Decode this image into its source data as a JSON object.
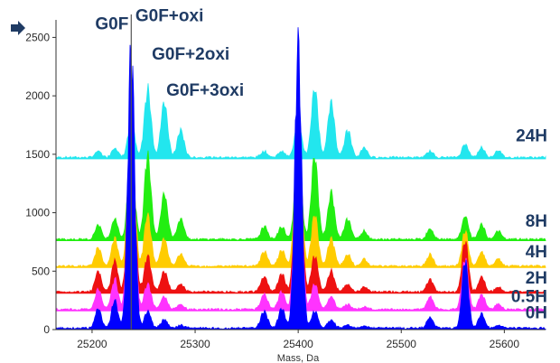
{
  "chart_data": {
    "type": "line",
    "title": "",
    "xlabel": "Mass, Da",
    "ylabel": "",
    "xlim": [
      25165,
      25640
    ],
    "ylim": [
      0,
      2650
    ],
    "x_ticks": [
      25200,
      25300,
      25400,
      25500,
      25600
    ],
    "y_ticks": [
      0,
      500,
      1000,
      1500,
      2000,
      2500
    ],
    "grid": false,
    "legend": "labels at right end of each trace",
    "reference_line_x": 25238,
    "annotations": [
      {
        "text": "G0F",
        "x": 25203,
        "y": 2570
      },
      {
        "text": "G0F+oxi",
        "x": 25242,
        "y": 2640
      },
      {
        "text": "G0F+2oxi",
        "x": 25258,
        "y": 2310
      },
      {
        "text": "G0F+3oxi",
        "x": 25272,
        "y": 2000
      }
    ],
    "peaks": [
      {
        "x": 25238,
        "w": 3.2,
        "r": [
          1.0,
          0.85,
          0.72,
          0.62,
          0.42,
          0.3
        ]
      },
      {
        "x": 25254,
        "w": 3.2,
        "r": [
          0.06,
          0.1,
          0.14,
          0.22,
          0.4,
          0.55
        ]
      },
      {
        "x": 25270,
        "w": 3.2,
        "r": [
          0.03,
          0.05,
          0.08,
          0.12,
          0.22,
          0.45
        ]
      },
      {
        "x": 25286,
        "w": 3.2,
        "r": [
          0.01,
          0.02,
          0.03,
          0.05,
          0.1,
          0.22
        ]
      },
      {
        "x": 25222,
        "w": 3.0,
        "r": [
          0.1,
          0.12,
          0.12,
          0.12,
          0.1,
          0.08
        ]
      },
      {
        "x": 25206,
        "w": 3.0,
        "r": [
          0.07,
          0.08,
          0.08,
          0.08,
          0.07,
          0.05
        ]
      },
      {
        "x": 25367,
        "w": 3.2,
        "r": [
          0.06,
          0.06,
          0.06,
          0.06,
          0.06,
          0.05
        ]
      },
      {
        "x": 25384,
        "w": 3.2,
        "r": [
          0.07,
          0.07,
          0.07,
          0.07,
          0.06,
          0.05
        ]
      },
      {
        "x": 25400,
        "w": 3.2,
        "r": [
          1.0,
          0.85,
          0.72,
          0.62,
          0.42,
          0.3
        ]
      },
      {
        "x": 25416,
        "w": 3.2,
        "r": [
          0.06,
          0.1,
          0.14,
          0.22,
          0.4,
          0.55
        ]
      },
      {
        "x": 25432,
        "w": 3.2,
        "r": [
          0.03,
          0.05,
          0.08,
          0.12,
          0.22,
          0.45
        ]
      },
      {
        "x": 25448,
        "w": 3.2,
        "r": [
          0.01,
          0.02,
          0.03,
          0.05,
          0.1,
          0.22
        ]
      },
      {
        "x": 25464,
        "w": 3.0,
        "r": [
          0.01,
          0.01,
          0.02,
          0.03,
          0.04,
          0.08
        ]
      },
      {
        "x": 25528,
        "w": 3.0,
        "r": [
          0.04,
          0.05,
          0.05,
          0.05,
          0.05,
          0.05
        ]
      },
      {
        "x": 25562,
        "w": 3.0,
        "r": [
          0.24,
          0.2,
          0.2,
          0.15,
          0.11,
          0.11
        ]
      },
      {
        "x": 25578,
        "w": 3.0,
        "r": [
          0.05,
          0.06,
          0.06,
          0.06,
          0.07,
          0.08
        ]
      },
      {
        "x": 25594,
        "w": 3.0,
        "r": [
          0.01,
          0.02,
          0.02,
          0.03,
          0.04,
          0.06
        ]
      }
    ],
    "series": [
      {
        "name": "0H",
        "color": "#0000ff",
        "baseline": 0,
        "height": 2500,
        "label_y": 95
      },
      {
        "name": "0.5H",
        "color": "#ff33ff",
        "baseline": 160,
        "height": 2270,
        "label_y": 235
      },
      {
        "name": "2H",
        "color": "#ee1111",
        "baseline": 310,
        "height": 2270,
        "label_y": 395
      },
      {
        "name": "4H",
        "color": "#ffcc00",
        "baseline": 530,
        "height": 2080,
        "label_y": 620
      },
      {
        "name": "8H",
        "color": "#22ee11",
        "baseline": 760,
        "height": 1850,
        "label_y": 880
      },
      {
        "name": "24H",
        "color": "#22e6ee",
        "baseline": 1460,
        "height": 1100,
        "label_y": 1610
      }
    ]
  }
}
